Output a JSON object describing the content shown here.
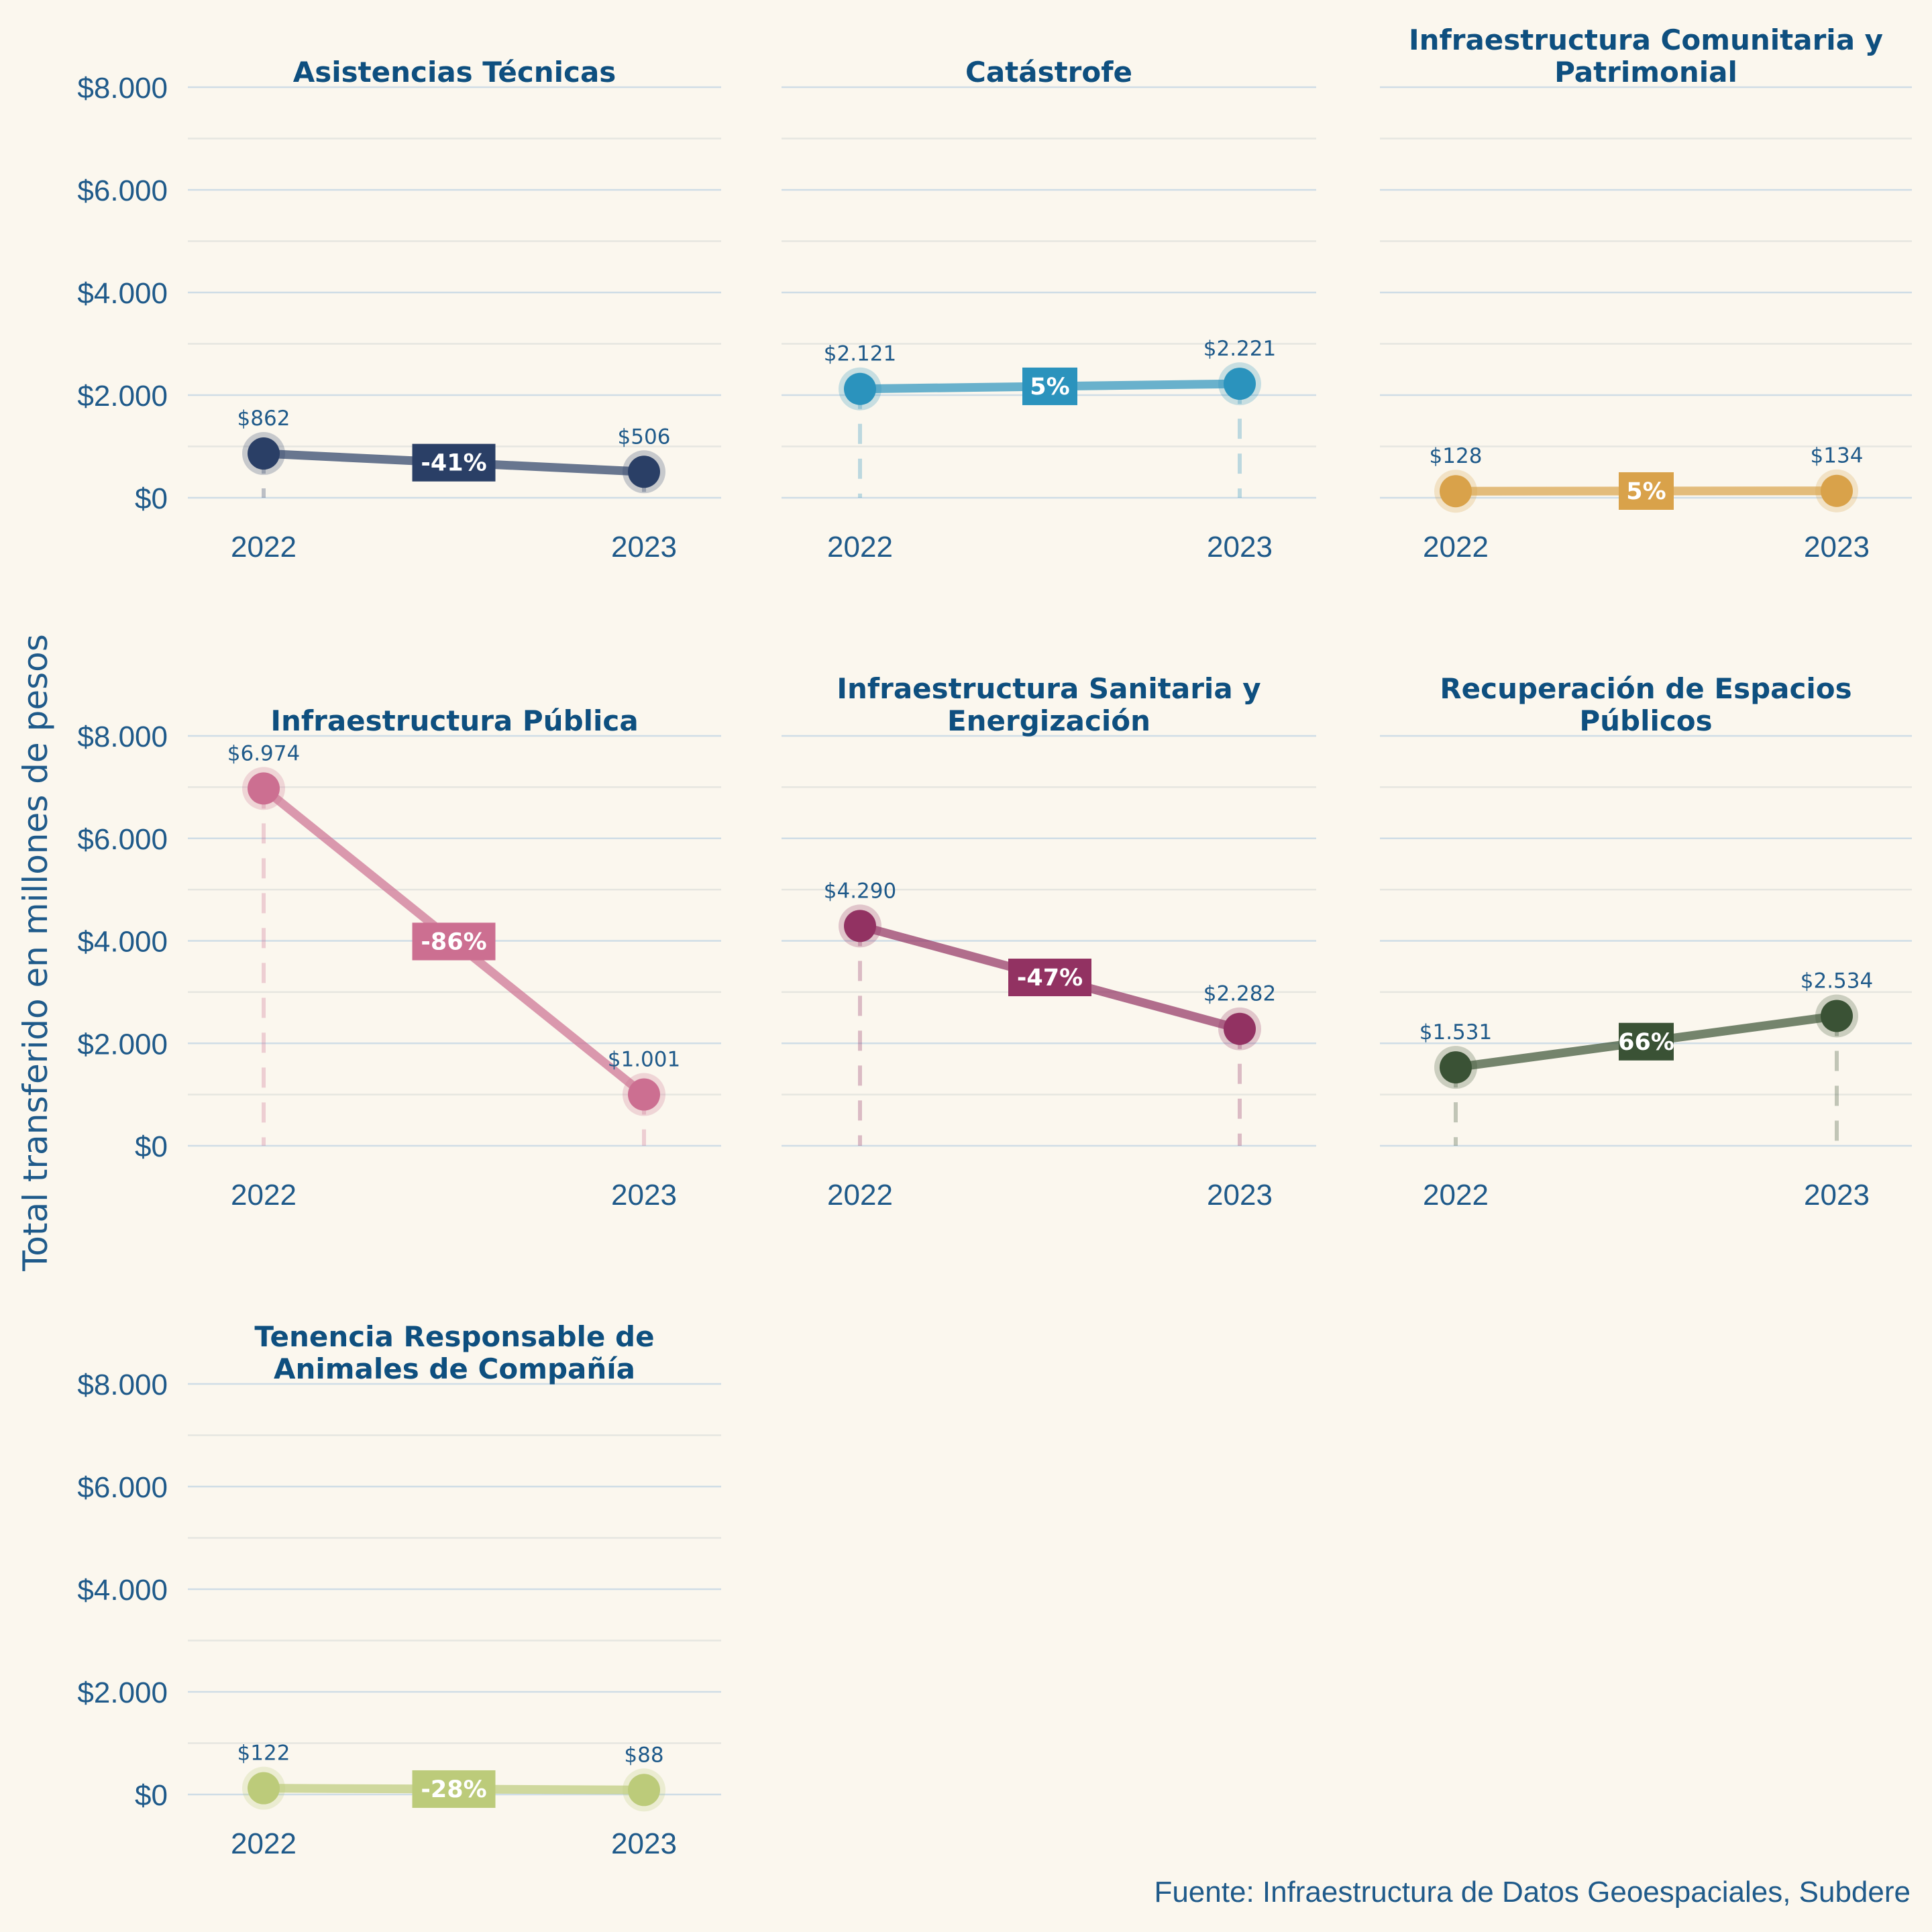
{
  "chart_data": {
    "type": "line",
    "layout": "small-multiples 3x3 (7 panels)",
    "ylabel": "Total transferido en millones de pesos",
    "source": "Fuente: Infraestructura de Datos Geoespaciales, Subdere",
    "x": [
      "2022",
      "2023"
    ],
    "ylim": [
      0,
      8000
    ],
    "yticks": [
      0,
      2000,
      4000,
      6000,
      8000
    ],
    "ytick_labels": [
      "$0",
      "$2.000",
      "$4.000",
      "$6.000",
      "$8.000"
    ],
    "grid": true,
    "panels": [
      {
        "title": [
          "Asistencias Técnicas"
        ],
        "values": [
          862,
          506
        ],
        "value_labels": [
          "$862",
          "$506"
        ],
        "change_label": "-41%",
        "color": "#2a3f66",
        "show_yaxis": true
      },
      {
        "title": [
          "Catástrofe"
        ],
        "values": [
          2121,
          2221
        ],
        "value_labels": [
          "$2.121",
          "$2.221"
        ],
        "change_label": "5%",
        "color": "#2b93bd",
        "show_yaxis": false
      },
      {
        "title": [
          "Infraestructura Comunitaria y",
          "Patrimonial"
        ],
        "values": [
          128,
          134
        ],
        "value_labels": [
          "$128",
          "$134"
        ],
        "change_label": "5%",
        "color": "#d9a24a",
        "show_yaxis": false
      },
      {
        "title": [
          "Infraestructura Pública"
        ],
        "values": [
          6974,
          1001
        ],
        "value_labels": [
          "$6.974",
          "$1.001"
        ],
        "change_label": "-86%",
        "color": "#cc6f91",
        "show_yaxis": true
      },
      {
        "title": [
          "Infraestructura Sanitaria y",
          "Energización"
        ],
        "values": [
          4290,
          2282
        ],
        "value_labels": [
          "$4.290",
          "$2.282"
        ],
        "change_label": "-47%",
        "color": "#923262",
        "show_yaxis": false
      },
      {
        "title": [
          "Recuperación de Espacios",
          "Públicos"
        ],
        "values": [
          1531,
          2534
        ],
        "value_labels": [
          "$1.531",
          "$2.534"
        ],
        "change_label": "66%",
        "color": "#3a5235",
        "show_yaxis": false
      },
      {
        "title": [
          "Tenencia Responsable de",
          "Animales de Compañía"
        ],
        "values": [
          122,
          88
        ],
        "value_labels": [
          "$122",
          "$88"
        ],
        "change_label": "-28%",
        "color": "#bccb7a",
        "show_yaxis": true
      }
    ]
  }
}
